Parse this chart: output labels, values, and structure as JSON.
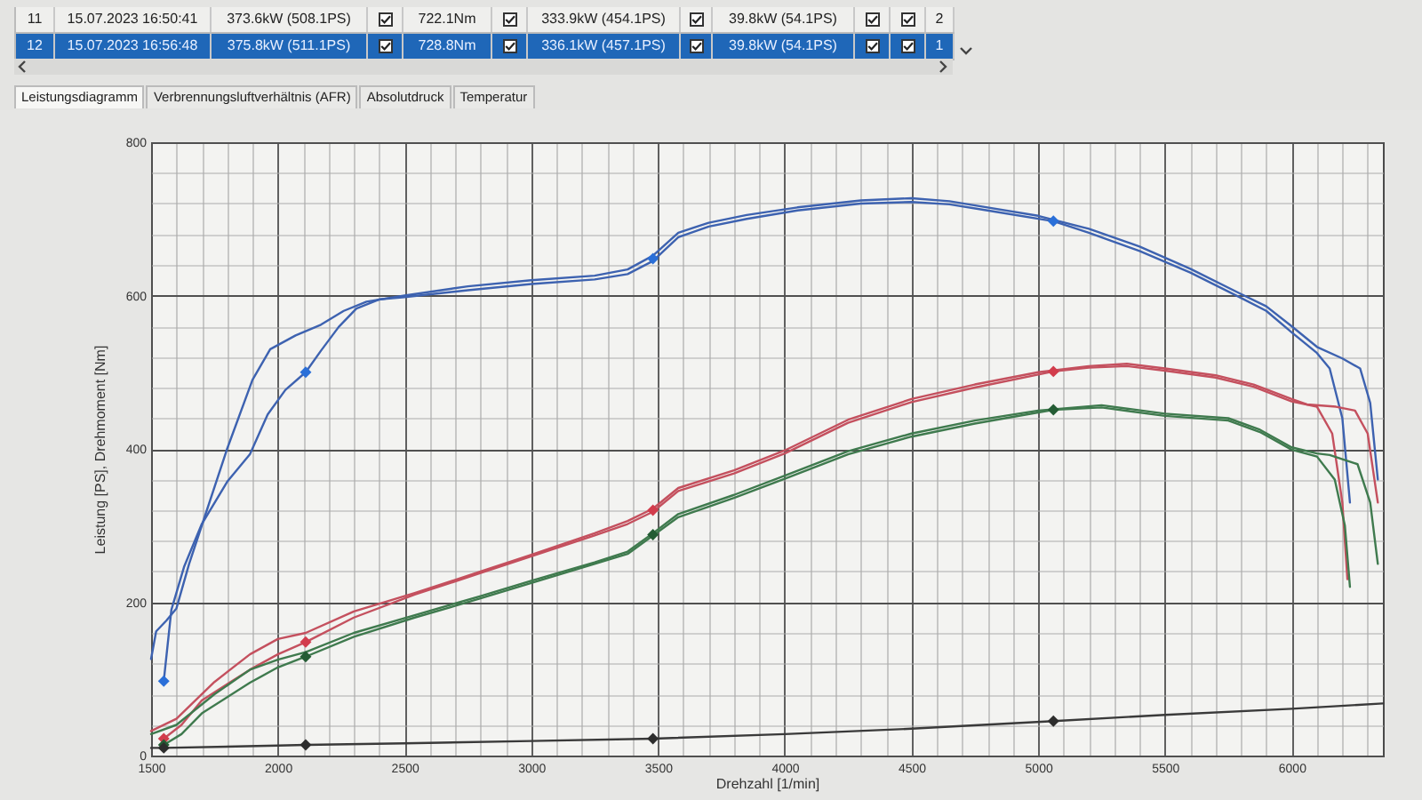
{
  "chart_data": {
    "type": "line",
    "title": "Leistungsdiagramm",
    "xlabel": "Drehzahl [1/min]",
    "ylabel": "Leistung [PS], Drehmoment [Nm]",
    "annotations": [
      "Verbrennungsluftverhältnis (AFR)",
      "Absolutdruck",
      "Temperatur",
      "11",
      "15.07.2023 16:50:41",
      "373.6kW (508.1PS)",
      "722.1Nm",
      "333.9kW (454.1PS)",
      "39.8kW (54.1PS)",
      "2",
      "12",
      "15.07.2023 16:56:48",
      "375.8kW (511.1PS)",
      "728.8Nm",
      "336.1kW (457.1PS)",
      "39.8kW (54.1PS)",
      "1"
    ],
    "xlim": [
      1500,
      6360
    ],
    "xticks": [
      1500,
      {
        "value": 1600,
        "label": null
      },
      {
        "value": 1700,
        "label": null
      },
      {
        "value": 1800,
        "label": null
      },
      {
        "value": 1900,
        "label": null
      },
      2000,
      {
        "value": 2100,
        "label": null
      },
      {
        "value": 2200,
        "label": null
      },
      {
        "value": 2300,
        "label": null
      },
      {
        "value": 2400,
        "label": null
      },
      2500,
      {
        "value": 2600,
        "label": null
      },
      {
        "value": 2700,
        "label": null
      },
      {
        "value": 2800,
        "label": null
      },
      {
        "value": 2900,
        "label": null
      },
      3000,
      {
        "value": 3100,
        "label": null
      },
      {
        "value": 3200,
        "label": null
      },
      {
        "value": 3300,
        "label": null
      },
      {
        "value": 3400,
        "label": null
      },
      3500,
      {
        "value": 3600,
        "label": null
      },
      {
        "value": 3700,
        "label": null
      },
      {
        "value": 3800,
        "label": null
      },
      {
        "value": 3900,
        "label": null
      },
      4000,
      {
        "value": 4100,
        "label": null
      },
      {
        "value": 4200,
        "label": null
      },
      {
        "value": 4300,
        "label": null
      },
      {
        "value": 4400,
        "label": null
      },
      4500,
      {
        "value": 4600,
        "label": null
      },
      {
        "value": 4700,
        "label": null
      },
      {
        "value": 4800,
        "label": null
      },
      {
        "value": 4900,
        "label": null
      },
      5000,
      {
        "value": 5100,
        "label": null
      },
      {
        "value": 5200,
        "label": null
      },
      {
        "value": 5300,
        "label": null
      },
      {
        "value": 5400,
        "label": null
      },
      5500,
      {
        "value": 5600,
        "label": null
      },
      {
        "value": 5700,
        "label": null
      },
      {
        "value": 5800,
        "label": null
      },
      {
        "value": 5900,
        "label": null
      },
      6000,
      {
        "value": 6100,
        "label": null
      },
      {
        "value": 6200,
        "label": null
      },
      {
        "value": 6300,
        "label": null
      }
    ],
    "ylim": [
      0,
      800
    ],
    "yticks": [
      0,
      {
        "value": 40,
        "label": null
      },
      {
        "value": 80,
        "label": null
      },
      {
        "value": 120,
        "label": null
      },
      {
        "value": 160,
        "label": null
      },
      200,
      {
        "value": 240,
        "label": null
      },
      {
        "value": 280,
        "label": null
      },
      {
        "value": 320,
        "label": null
      },
      {
        "value": 360,
        "label": null
      },
      400,
      {
        "value": 440,
        "label": null
      },
      {
        "value": 480,
        "label": null
      },
      {
        "value": 520,
        "label": null
      },
      {
        "value": 560,
        "label": null
      },
      600,
      {
        "value": 640,
        "label": null
      },
      {
        "value": 680,
        "label": null
      },
      {
        "value": 720,
        "label": null
      },
      {
        "value": 760,
        "label": null
      },
      800
    ],
    "grid": true,
    "line_style": "solid",
    "series": [
      {
        "color": "#3d62b0",
        "x": [
          1500,
          1520,
          1560,
          1600,
          1650,
          1700,
          1800,
          1900,
          1970,
          2070,
          2170,
          2260,
          2350,
          2500,
          2750,
          3000,
          3250,
          3380,
          3480,
          3580,
          3700,
          3850,
          4050,
          4300,
          4500,
          4650,
          4800,
          5000,
          5200,
          5400,
          5600,
          5800,
          5900,
          6000,
          6100,
          6200,
          6270,
          6310,
          6340
        ],
        "values": [
          126,
          162,
          176,
          192,
          250,
          300,
          400,
          490,
          530,
          548,
          562,
          580,
          592,
          600,
          612,
          620,
          626,
          634,
          652,
          682,
          695,
          705,
          715,
          724,
          727,
          723,
          715,
          704,
          687,
          664,
          635,
          602,
          586,
          560,
          533,
          518,
          505,
          460,
          360
        ]
      },
      {
        "color": "#3d62b0",
        "x": [
          1550,
          1580,
          1630,
          1700,
          1800,
          1890,
          1960,
          2030,
          2110,
          2170,
          2240,
          2310,
          2400,
          2500,
          2750,
          3000,
          3250,
          3380,
          3480,
          3580,
          3700,
          3850,
          4050,
          4300,
          4500,
          4650,
          4800,
          5060,
          5200,
          5400,
          5600,
          5800,
          5900,
          6000,
          6100,
          6150,
          6200,
          6230
        ],
        "values": [
          97,
          190,
          246,
          302,
          357,
          393,
          445,
          477,
          500,
          528,
          559,
          583,
          595,
          598,
          607,
          615,
          621,
          628,
          645,
          676,
          690,
          700,
          711,
          720,
          722,
          719,
          711,
          697,
          682,
          658,
          630,
          597,
          580,
          552,
          525,
          505,
          440,
          330
        ]
      },
      {
        "color": "#c4505e",
        "x": [
          1500,
          1600,
          1750,
          1890,
          2000,
          2110,
          2300,
          2540,
          2800,
          3000,
          3250,
          3380,
          3480,
          3580,
          3800,
          4000,
          4250,
          4500,
          4750,
          5000,
          5200,
          5350,
          5500,
          5700,
          5850,
          6000,
          6060,
          6175,
          6250,
          6300,
          6340
        ],
        "values": [
          32,
          48,
          96,
          132,
          152,
          160,
          188,
          212,
          240,
          262,
          290,
          306,
          322,
          349,
          372,
          398,
          438,
          465,
          484,
          500,
          508,
          511,
          505,
          496,
          484,
          465,
          458,
          455,
          450,
          420,
          330
        ]
      },
      {
        "color": "#c4505e",
        "x": [
          1550,
          1620,
          1700,
          1890,
          2000,
          2110,
          2300,
          2540,
          2800,
          3000,
          3250,
          3380,
          3480,
          3580,
          3800,
          4000,
          4250,
          4500,
          4750,
          5060,
          5200,
          5350,
          5500,
          5700,
          5850,
          6000,
          6100,
          6160,
          6200,
          6220
        ],
        "values": [
          22,
          40,
          72,
          112,
          132,
          148,
          180,
          210,
          238,
          260,
          287,
          302,
          318,
          345,
          368,
          394,
          434,
          461,
          480,
          501,
          506,
          508,
          502,
          493,
          481,
          462,
          455,
          420,
          330,
          230
        ]
      },
      {
        "color": "#3f7a4e",
        "x": [
          1500,
          1600,
          1750,
          1890,
          2000,
          2110,
          2300,
          2540,
          2800,
          3000,
          3250,
          3380,
          3480,
          3580,
          3800,
          4000,
          4250,
          4500,
          4750,
          5000,
          5250,
          5500,
          5750,
          5875,
          6000,
          6100,
          6150,
          6260,
          6310,
          6340
        ],
        "values": [
          28,
          40,
          80,
          112,
          125,
          135,
          160,
          183,
          208,
          228,
          252,
          266,
          290,
          315,
          340,
          365,
          397,
          420,
          437,
          450,
          457,
          446,
          440,
          425,
          402,
          394,
          392,
          380,
          330,
          250
        ]
      },
      {
        "color": "#3f7a4e",
        "x": [
          1550,
          1620,
          1700,
          1890,
          2000,
          2110,
          2300,
          2540,
          2800,
          3000,
          3250,
          3380,
          3480,
          3580,
          3800,
          4000,
          4250,
          4500,
          4750,
          5060,
          5250,
          5500,
          5750,
          5875,
          6000,
          6100,
          6170,
          6210,
          6230
        ],
        "values": [
          14,
          28,
          55,
          95,
          115,
          129,
          155,
          180,
          205,
          225,
          250,
          263,
          287,
          311,
          336,
          361,
          393,
          416,
          433,
          451,
          454,
          443,
          437,
          422,
          399,
          390,
          360,
          300,
          220
        ]
      },
      {
        "color": "#3a3a3a",
        "x": [
          1500,
          1550,
          2000,
          2110,
          2500,
          3000,
          3480,
          4000,
          4500,
          5060,
          5500,
          6000,
          6360
        ],
        "values": [
          10,
          10,
          13,
          14,
          16,
          19,
          22,
          28,
          35,
          45,
          53,
          61,
          68
        ]
      },
      {
        "type": "scatter",
        "marker": "diamond",
        "color": "#2a6fd8",
        "x": [
          1550,
          2110,
          3480,
          5060
        ],
        "values": [
          97,
          500,
          648,
          697
        ]
      },
      {
        "type": "scatter",
        "marker": "diamond",
        "color": "#d23c4c",
        "x": [
          1550,
          2110,
          3480,
          5060
        ],
        "values": [
          22,
          148,
          320,
          501
        ]
      },
      {
        "type": "scatter",
        "marker": "diamond",
        "color": "#245c34",
        "x": [
          1550,
          2110,
          3480,
          5060
        ],
        "values": [
          14,
          129,
          288,
          451
        ]
      },
      {
        "type": "scatter",
        "marker": "diamond",
        "color": "#2d2d2d",
        "x": [
          1550,
          2110,
          3480,
          5060
        ],
        "values": [
          10,
          14,
          22,
          45
        ]
      }
    ]
  }
}
